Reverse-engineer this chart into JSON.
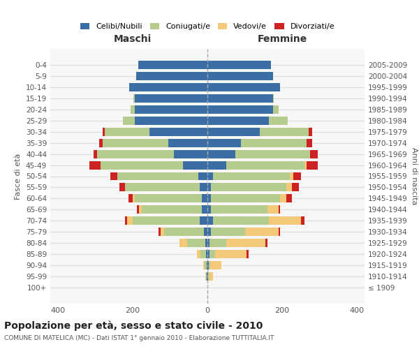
{
  "age_groups": [
    "100+",
    "95-99",
    "90-94",
    "85-89",
    "80-84",
    "75-79",
    "70-74",
    "65-69",
    "60-64",
    "55-59",
    "50-54",
    "45-49",
    "40-44",
    "35-39",
    "30-34",
    "25-29",
    "20-24",
    "15-19",
    "10-14",
    "5-9",
    "0-4"
  ],
  "birth_years": [
    "≤ 1909",
    "1910-1914",
    "1915-1919",
    "1920-1924",
    "1925-1929",
    "1930-1934",
    "1935-1939",
    "1940-1944",
    "1945-1949",
    "1950-1954",
    "1955-1959",
    "1960-1964",
    "1965-1969",
    "1970-1974",
    "1975-1979",
    "1980-1984",
    "1985-1989",
    "1990-1994",
    "1995-1999",
    "2000-2004",
    "2005-2009"
  ],
  "maschi": {
    "celibi": [
      0,
      1,
      2,
      3,
      5,
      10,
      20,
      15,
      15,
      20,
      25,
      65,
      90,
      105,
      155,
      195,
      195,
      195,
      210,
      190,
      185
    ],
    "coniugati": [
      0,
      2,
      5,
      15,
      50,
      105,
      180,
      160,
      180,
      200,
      215,
      220,
      205,
      175,
      120,
      30,
      10,
      3,
      0,
      0,
      0
    ],
    "vedovi": [
      0,
      2,
      5,
      10,
      20,
      10,
      15,
      8,
      5,
      0,
      0,
      0,
      0,
      0,
      0,
      0,
      0,
      0,
      0,
      0,
      0
    ],
    "divorziati": [
      0,
      0,
      0,
      0,
      0,
      5,
      5,
      5,
      10,
      15,
      20,
      30,
      10,
      10,
      5,
      0,
      0,
      0,
      0,
      0,
      0
    ]
  },
  "femmine": {
    "nubili": [
      0,
      2,
      3,
      5,
      5,
      10,
      15,
      10,
      10,
      10,
      15,
      50,
      75,
      90,
      140,
      165,
      175,
      175,
      195,
      175,
      170
    ],
    "coniugate": [
      0,
      3,
      5,
      15,
      45,
      90,
      150,
      150,
      185,
      200,
      205,
      210,
      200,
      175,
      130,
      50,
      15,
      3,
      0,
      0,
      0
    ],
    "vedove": [
      0,
      10,
      30,
      85,
      105,
      90,
      85,
      30,
      15,
      15,
      10,
      5,
      0,
      0,
      0,
      0,
      0,
      0,
      0,
      0,
      0
    ],
    "divorziate": [
      0,
      0,
      0,
      5,
      5,
      5,
      10,
      5,
      15,
      20,
      20,
      30,
      20,
      15,
      10,
      0,
      0,
      0,
      0,
      0,
      0
    ]
  },
  "colors": {
    "celibi": "#3a6ea5",
    "coniugati": "#b5cc8e",
    "vedovi": "#f5c97a",
    "divorziati": "#cc2222"
  },
  "legend_labels": [
    "Celibi/Nubili",
    "Coniugati/e",
    "Vedovi/e",
    "Divorziati/e"
  ],
  "legend_color_keys": [
    "celibi",
    "coniugati",
    "vedovi",
    "divorziati"
  ],
  "title": "Popolazione per età, sesso e stato civile - 2010",
  "subtitle": "COMUNE DI MATELICA (MC) - Dati ISTAT 1° gennaio 2010 - Elaborazione TUTTITALIA.IT",
  "xlabel_left": "Maschi",
  "xlabel_right": "Femmine",
  "ylabel_left": "Fasce di età",
  "ylabel_right": "Anni di nascita",
  "xlim": 420,
  "bg_color": "#f7f7f7",
  "grid_color": "#dddddd"
}
